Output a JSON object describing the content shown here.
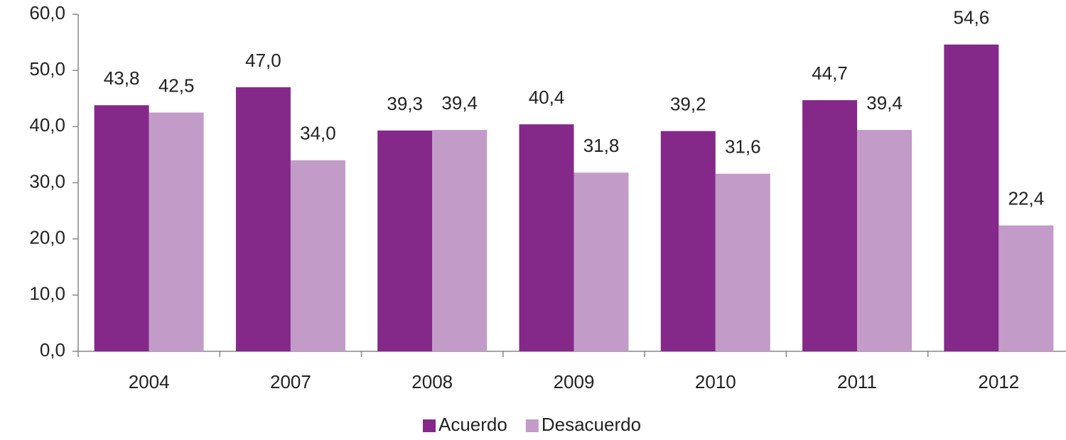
{
  "chart_data": {
    "type": "bar",
    "categories": [
      "2004",
      "2007",
      "2008",
      "2009",
      "2010",
      "2011",
      "2012"
    ],
    "series": [
      {
        "name": "Acuerdo",
        "color": "#84288a",
        "values": [
          43.8,
          47.0,
          39.3,
          40.4,
          39.2,
          44.7,
          54.6
        ],
        "value_labels": [
          "43,8",
          "47,0",
          "39,3",
          "40,4",
          "39,2",
          "44,7",
          "54,6"
        ]
      },
      {
        "name": "Desacuerdo",
        "color": "#c39bc8",
        "values": [
          42.5,
          34.0,
          39.4,
          31.8,
          31.6,
          39.4,
          22.4
        ],
        "value_labels": [
          "42,5",
          "34,0",
          "39,4",
          "31,8",
          "31,6",
          "39,4",
          "22,4"
        ]
      }
    ],
    "ylim": [
      0,
      60
    ],
    "yticks": [
      {
        "value": 0,
        "label": "0,0"
      },
      {
        "value": 10,
        "label": "10,0"
      },
      {
        "value": 20,
        "label": "20,0"
      },
      {
        "value": 30,
        "label": "30,0"
      },
      {
        "value": 40,
        "label": "40,0"
      },
      {
        "value": 50,
        "label": "50,0"
      },
      {
        "value": 60,
        "label": "60,0"
      }
    ],
    "legend": "bottom"
  }
}
